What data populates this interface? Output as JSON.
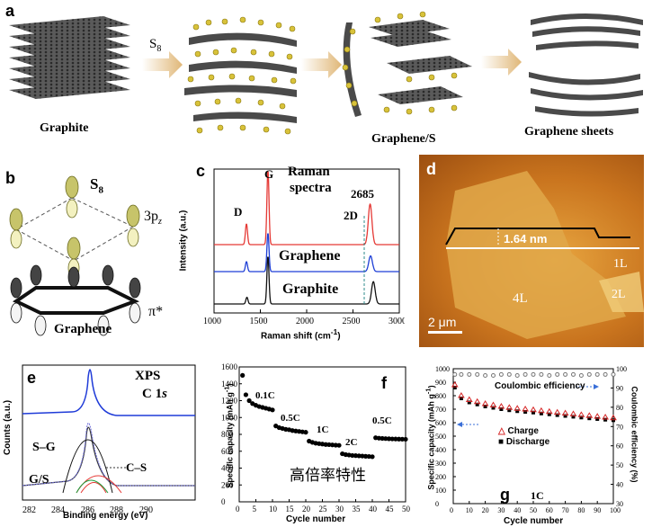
{
  "panels": {
    "a": {
      "label": "a",
      "arrow_label": "S",
      "arrow_label_sub": "8",
      "captions": [
        "Graphite",
        "Graphene/S",
        "Graphene sheets"
      ]
    },
    "b": {
      "label": "b",
      "s8": "S",
      "s8_sub": "8",
      "orbital": "3p",
      "orbital_sub": "z",
      "pi": "π*",
      "caption": "Graphene"
    },
    "c": {
      "label": "c",
      "title_line1": "Raman",
      "title_line2": "spectra",
      "peak_g": "G",
      "peak_d": "D",
      "peak_2d": "2D",
      "peak_value": "2685",
      "trace_labels": [
        "Graphene",
        "Graphite"
      ],
      "ylabel": "Intensity (a.u.)",
      "xlabel": "Raman shift (cm",
      "xlabel_sup": "-1",
      "xlabel_end": ")"
    },
    "d": {
      "label": "d",
      "height": "1.64 nm",
      "layers": [
        "1L",
        "4L",
        "2L"
      ],
      "scale": "2 μm"
    },
    "e": {
      "label": "e",
      "title": "XPS",
      "subtitle": "C 1",
      "subtitle_it": "s",
      "labels": [
        "S–G",
        "G/S",
        "C–S"
      ],
      "xlabel": "Binding energy (eV)",
      "ylabel": "Counts (a.u.)"
    },
    "f": {
      "label": "f",
      "ylabel": "Specific capacity (mAh g",
      "ylabel_sup": "-1",
      "ylabel_end": ")",
      "xlabel": "Cycle number",
      "rates": [
        "0.1C",
        "0.5C",
        "1C",
        "2C",
        "0.5C"
      ],
      "annotation": "高倍率特性"
    },
    "g": {
      "label": "g",
      "coulombic": "Coulombic efficiency",
      "legend": [
        "Charge",
        "Discharge"
      ],
      "rate": "1C",
      "ylabel_left": "Specific capacity (mAh g",
      "ylabel_left_sup": "-1",
      "ylabel_left_end": ")",
      "ylabel_right": "Coulombic efficiency (%)",
      "xlabel": "Cycle number"
    }
  },
  "chart_data": [
    {
      "type": "line",
      "panel": "c",
      "xlabel": "Raman shift (cm-1)",
      "ylabel": "Intensity (a.u.)",
      "xlim": [
        1000,
        3000
      ],
      "x_ticks": [
        1000,
        1500,
        2000,
        2500,
        3000
      ],
      "series": [
        {
          "name": "",
          "color": "#e53935",
          "peaks": [
            [
              1350,
              0.28
            ],
            [
              1582,
              1.0
            ],
            [
              2685,
              0.55
            ]
          ]
        },
        {
          "name": "Graphene",
          "color": "#1e3fd6",
          "peaks": [
            [
              1350,
              0.22
            ],
            [
              1582,
              0.85
            ],
            [
              2690,
              0.35
            ]
          ]
        },
        {
          "name": "Graphite",
          "color": "#111111",
          "peaks": [
            [
              1355,
              0.12
            ],
            [
              1582,
              0.85
            ],
            [
              2720,
              0.4
            ]
          ]
        }
      ]
    },
    {
      "type": "scatter",
      "panel": "f",
      "xlabel": "Cycle number",
      "ylabel": "Specific capacity (mAh g-1)",
      "xlim": [
        0,
        50
      ],
      "ylim": [
        0,
        1600
      ],
      "x_ticks": [
        0,
        5,
        10,
        15,
        20,
        25,
        30,
        35,
        40,
        45,
        50
      ],
      "y_ticks": [
        0,
        200,
        400,
        600,
        800,
        1000,
        1200,
        1400,
        1600
      ],
      "series": [
        {
          "name": "",
          "x": [
            1,
            2,
            3,
            4,
            5,
            6,
            7,
            8,
            9,
            10,
            11,
            12,
            13,
            14,
            15,
            16,
            17,
            18,
            19,
            20,
            21,
            22,
            23,
            24,
            25,
            26,
            27,
            28,
            29,
            30,
            31,
            32,
            33,
            34,
            35,
            36,
            37,
            38,
            39,
            40,
            41,
            42,
            43,
            44,
            45,
            46,
            47,
            48,
            49,
            50
          ],
          "y": [
            1500,
            1270,
            1200,
            1165,
            1145,
            1130,
            1120,
            1110,
            1100,
            1090,
            900,
            880,
            870,
            860,
            855,
            845,
            840,
            835,
            830,
            825,
            720,
            705,
            695,
            690,
            685,
            680,
            678,
            675,
            672,
            670,
            570,
            560,
            555,
            550,
            548,
            545,
            543,
            540,
            538,
            535,
            760,
            755,
            752,
            750,
            748,
            746,
            745,
            744,
            743,
            742
          ]
        }
      ]
    },
    {
      "type": "scatter",
      "panel": "g",
      "xlabel": "Cycle number",
      "ylabel": "Specific capacity (mAh g-1)",
      "ylabel_right": "Coulombic efficiency (%)",
      "xlim": [
        0,
        100
      ],
      "ylim": [
        0,
        1000
      ],
      "ylim_right": [
        30,
        100
      ],
      "x_ticks": [
        0,
        10,
        20,
        30,
        40,
        50,
        60,
        70,
        80,
        90,
        100
      ],
      "y_ticks": [
        0,
        100,
        200,
        300,
        400,
        500,
        600,
        700,
        800,
        900,
        1000
      ],
      "y_ticks_right": [
        30,
        40,
        50,
        60,
        70,
        80,
        90,
        100
      ],
      "series": [
        {
          "name": "Charge",
          "x": [
            1,
            5,
            10,
            15,
            20,
            25,
            30,
            35,
            40,
            45,
            50,
            55,
            60,
            65,
            70,
            75,
            80,
            85,
            90,
            95,
            100
          ],
          "y": [
            880,
            800,
            770,
            755,
            740,
            730,
            720,
            712,
            705,
            700,
            695,
            688,
            682,
            676,
            670,
            664,
            658,
            652,
            646,
            640,
            635
          ]
        },
        {
          "name": "Discharge",
          "x": [
            1,
            5,
            10,
            15,
            20,
            25,
            30,
            35,
            40,
            45,
            50,
            55,
            60,
            65,
            70,
            75,
            80,
            85,
            90,
            95,
            100
          ],
          "y": [
            860,
            780,
            750,
            735,
            720,
            710,
            700,
            692,
            685,
            680,
            675,
            668,
            662,
            656,
            650,
            644,
            638,
            632,
            627,
            622,
            618
          ]
        },
        {
          "name": "Coulombic efficiency",
          "x": [
            1,
            5,
            10,
            15,
            20,
            25,
            30,
            35,
            40,
            45,
            50,
            55,
            60,
            65,
            70,
            75,
            80,
            85,
            90,
            95,
            100
          ],
          "y": [
            97,
            97,
            97,
            97,
            96.5,
            96.5,
            97,
            97,
            96.5,
            97,
            97,
            97,
            96.5,
            97,
            97,
            97,
            96.5,
            97,
            97,
            97,
            97
          ]
        }
      ]
    }
  ]
}
